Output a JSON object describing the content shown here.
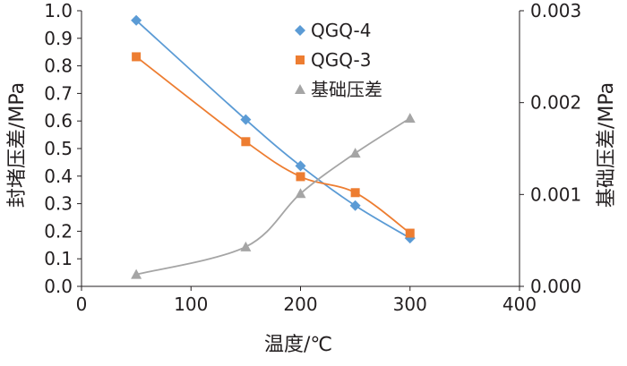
{
  "chart_data": {
    "type": "line",
    "xlabel": "温度/℃",
    "ylabel_left": "封堵压差/MPa",
    "ylabel_right": "基础压差/MPa",
    "xlim": [
      0,
      400
    ],
    "ylim_left": [
      0.0,
      1.0
    ],
    "ylim_right": [
      0.0,
      0.003
    ],
    "x_ticks": [
      "0",
      "100",
      "200",
      "300",
      "400"
    ],
    "y_left_ticks": [
      "0.0",
      "0.1",
      "0.2",
      "0.3",
      "0.4",
      "0.5",
      "0.6",
      "0.7",
      "0.8",
      "0.9",
      "1.0"
    ],
    "y_right_ticks": [
      "0.000",
      "0.001",
      "0.002",
      "0.003"
    ],
    "grid": false,
    "legend_position": "top-center",
    "series": [
      {
        "name": "QGQ-4",
        "axis": "left",
        "marker": "diamond",
        "color": "#5b9bd5",
        "x": [
          50,
          150,
          200,
          250,
          300
        ],
        "y": [
          0.965,
          0.605,
          0.437,
          0.293,
          0.175
        ]
      },
      {
        "name": "QGQ-3",
        "axis": "left",
        "marker": "square",
        "color": "#ed7d31",
        "x": [
          50,
          150,
          200,
          250,
          300
        ],
        "y": [
          0.833,
          0.525,
          0.398,
          0.34,
          0.193
        ]
      },
      {
        "name": "基础压差",
        "axis": "right",
        "marker": "triangle",
        "color": "#a5a5a5",
        "x": [
          50,
          150,
          200,
          250,
          300
        ],
        "y": [
          0.00013,
          0.00043,
          0.00101,
          0.00145,
          0.00183
        ]
      }
    ]
  }
}
